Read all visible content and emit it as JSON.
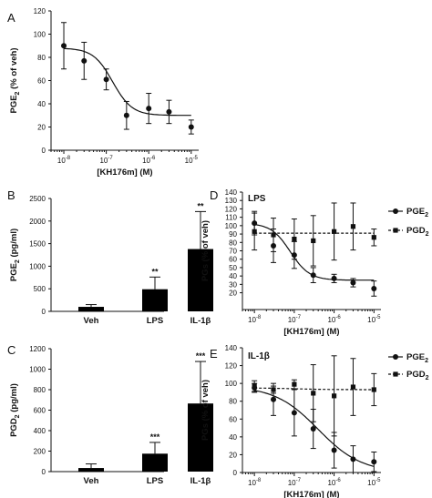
{
  "chart_data": [
    {
      "panel_label": "A",
      "type": "scatter",
      "xscale": "log",
      "xlim": [
        5e-09,
        1.5e-05
      ],
      "ylim": [
        0,
        120
      ],
      "yticks": [
        0,
        20,
        40,
        60,
        80,
        100,
        120
      ],
      "xticks": [
        1e-08,
        1e-07,
        1e-06,
        1e-05
      ],
      "xtick_labels": [
        "10-8",
        "10-7",
        "10-6",
        "10-5"
      ],
      "xlabel": "[KH176m] (M)",
      "ylabel": {
        "main": "PGE",
        "sub": "2",
        "rest": " (% of veh)"
      },
      "series": [
        {
          "marker": "circle",
          "line": "solid",
          "fit": true,
          "x": [
            1e-08,
            3e-08,
            1e-07,
            3e-07,
            1e-06,
            3e-06,
            1e-05
          ],
          "y": [
            90,
            77,
            61,
            30,
            36,
            33,
            20
          ],
          "err": [
            20,
            16,
            9,
            12,
            13,
            10,
            6
          ],
          "fit_curve": {
            "top": 88,
            "bottom": 30,
            "logec50": -6.85,
            "hill": 1.9
          }
        }
      ]
    },
    {
      "panel_label": "B",
      "type": "bar",
      "categories": [
        "Veh",
        "LPS",
        "IL-1β"
      ],
      "values": [
        100,
        490,
        1380
      ],
      "err": [
        50,
        270,
        830
      ],
      "annotations": [
        "",
        "**",
        "**"
      ],
      "ylim": [
        0,
        2500
      ],
      "yticks": [
        0,
        500,
        1000,
        1500,
        2000,
        2500
      ],
      "ylabel": {
        "main": "PGE",
        "sub": "2",
        "rest": " (pg/ml)"
      }
    },
    {
      "panel_label": "C",
      "type": "bar",
      "categories": [
        "Veh",
        "LPS",
        "IL-1β"
      ],
      "values": [
        35,
        175,
        665
      ],
      "err": [
        40,
        110,
        410
      ],
      "annotations": [
        "",
        "***",
        "***"
      ],
      "ylim": [
        0,
        1200
      ],
      "yticks": [
        0,
        200,
        400,
        600,
        800,
        1000,
        1200
      ],
      "ylabel": {
        "main": "PGD",
        "sub": "2",
        "rest": " (pg/ml)"
      }
    },
    {
      "panel_label": "D",
      "title": "LPS",
      "type": "scatter",
      "xscale": "log",
      "xlim": [
        5e-09,
        1.5e-05
      ],
      "ylim": [
        0,
        140
      ],
      "yticks": [
        20,
        30,
        40,
        50,
        60,
        70,
        80,
        90,
        100,
        110,
        120,
        130,
        140
      ],
      "xticks": [
        1e-08,
        1e-07,
        1e-06,
        1e-05
      ],
      "xtick_labels": [
        "10-8",
        "10-7",
        "10-6",
        "10-5"
      ],
      "xlabel": "[KH176m] (M)",
      "ylabel": "PGs (% of veh)",
      "legend_position": "top-right",
      "series": [
        {
          "name": {
            "main": "PGE",
            "sub": "2"
          },
          "marker": "circle",
          "line": "solid",
          "fit": true,
          "x": [
            1e-08,
            3e-08,
            1e-07,
            3e-07,
            1e-06,
            3e-06,
            1e-05
          ],
          "y": [
            103,
            76,
            65,
            41,
            37,
            32,
            25
          ],
          "err": [
            14,
            20,
            16,
            9,
            5,
            5,
            9
          ],
          "fit_curve": {
            "top": 103,
            "bottom": 35,
            "logec50": -7.1,
            "hill": 1.8
          }
        },
        {
          "name": {
            "main": "PGD",
            "sub": "2"
          },
          "marker": "square",
          "line": "dashed",
          "fit": true,
          "x": [
            1e-08,
            3e-08,
            1e-07,
            3e-07,
            1e-06,
            3e-06,
            1e-05
          ],
          "y": [
            93,
            89,
            84,
            82,
            93,
            99,
            86
          ],
          "err": [
            22,
            20,
            24,
            30,
            34,
            28,
            10
          ],
          "fit_curve": {
            "top": 91,
            "bottom": 91,
            "logec50": -7,
            "hill": 1
          }
        }
      ]
    },
    {
      "panel_label": "E",
      "title": "IL-1β",
      "type": "scatter",
      "xscale": "log",
      "xlim": [
        5e-09,
        1.5e-05
      ],
      "ylim": [
        0,
        140
      ],
      "yticks": [
        0,
        20,
        40,
        60,
        80,
        100,
        120,
        140
      ],
      "xticks": [
        1e-08,
        1e-07,
        1e-06,
        1e-05
      ],
      "xtick_labels": [
        "10-8",
        "10-7",
        "10-6",
        "10-5"
      ],
      "xlabel": "[KH176m] (M)",
      "ylabel": "PGs (% of veh)",
      "legend_position": "top-right",
      "series": [
        {
          "name": {
            "main": "PGE",
            "sub": "2"
          },
          "marker": "circle",
          "line": "solid",
          "fit": true,
          "x": [
            1e-08,
            3e-08,
            1e-07,
            3e-07,
            1e-06,
            3e-06,
            1e-05
          ],
          "y": [
            95,
            82,
            67,
            49,
            25,
            15,
            12
          ],
          "err": [
            5,
            18,
            26,
            22,
            20,
            15,
            11
          ],
          "fit_curve": {
            "top": 97,
            "bottom": 0,
            "logec50": -6.4,
            "hill": 0.8
          }
        },
        {
          "name": {
            "main": "PGD",
            "sub": "2"
          },
          "marker": "square",
          "line": "dashed",
          "fit": true,
          "x": [
            1e-08,
            3e-08,
            1e-07,
            3e-07,
            1e-06,
            3e-06,
            1e-05
          ],
          "y": [
            97,
            93,
            99,
            89,
            86,
            96,
            93
          ],
          "err": [
            6,
            4,
            5,
            32,
            45,
            32,
            18
          ],
          "fit_curve": {
            "top": 95,
            "bottom": 93,
            "logec50": -7,
            "hill": 1
          }
        }
      ]
    }
  ]
}
